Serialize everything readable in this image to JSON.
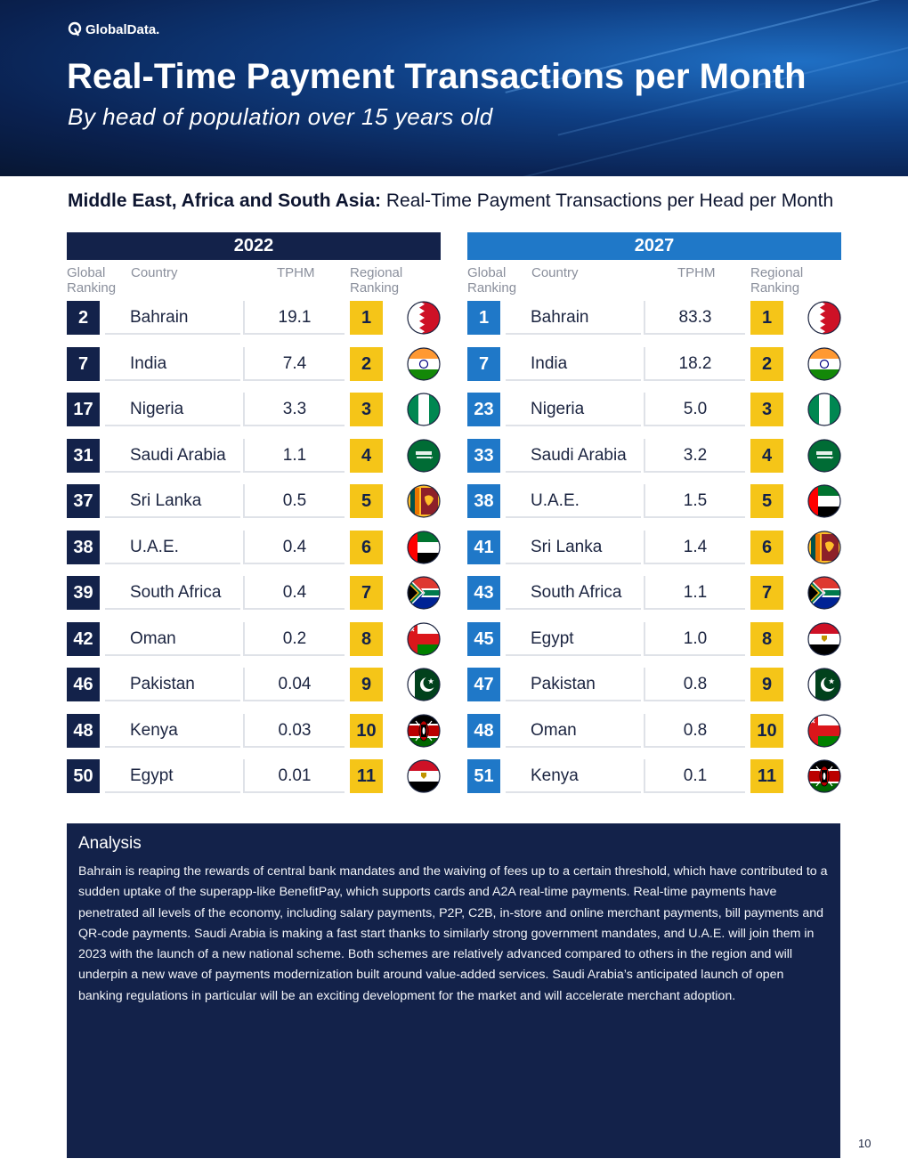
{
  "header": {
    "logo_text": "GlobalData.",
    "title": "Real-Time Payment Transactions per Month",
    "subtitle": "By head of population over 15 years old"
  },
  "section": {
    "title_bold": "Middle East, Africa and South Asia:",
    "title_rest": "Real-Time Payment Transactions per Head per Month"
  },
  "columns": {
    "global": "Global Ranking",
    "country": "Country",
    "tphm": "TPHM",
    "regional": "Regional Ranking"
  },
  "panels": [
    {
      "year": "2022",
      "rows": [
        {
          "global": "2",
          "country": "Bahrain",
          "tphm": "19.1",
          "regional": "1",
          "flag": "bahrain-flag-icon"
        },
        {
          "global": "7",
          "country": "India",
          "tphm": "7.4",
          "regional": "2",
          "flag": "india-flag-icon"
        },
        {
          "global": "17",
          "country": "Nigeria",
          "tphm": "3.3",
          "regional": "3",
          "flag": "nigeria-flag-icon"
        },
        {
          "global": "31",
          "country": "Saudi Arabia",
          "tphm": "1.1",
          "regional": "4",
          "flag": "saudi-arabia-flag-icon"
        },
        {
          "global": "37",
          "country": "Sri Lanka",
          "tphm": "0.5",
          "regional": "5",
          "flag": "sri-lanka-flag-icon"
        },
        {
          "global": "38",
          "country": "U.A.E.",
          "tphm": "0.4",
          "regional": "6",
          "flag": "uae-flag-icon"
        },
        {
          "global": "39",
          "country": "South Africa",
          "tphm": "0.4",
          "regional": "7",
          "flag": "south-africa-flag-icon"
        },
        {
          "global": "42",
          "country": "Oman",
          "tphm": "0.2",
          "regional": "8",
          "flag": "oman-flag-icon"
        },
        {
          "global": "46",
          "country": "Pakistan",
          "tphm": "0.04",
          "regional": "9",
          "flag": "pakistan-flag-icon"
        },
        {
          "global": "48",
          "country": "Kenya",
          "tphm": "0.03",
          "regional": "10",
          "flag": "kenya-flag-icon"
        },
        {
          "global": "50",
          "country": "Egypt",
          "tphm": "0.01",
          "regional": "11",
          "flag": "egypt-flag-icon"
        }
      ]
    },
    {
      "year": "2027",
      "rows": [
        {
          "global": "1",
          "country": "Bahrain",
          "tphm": "83.3",
          "regional": "1",
          "flag": "bahrain-flag-icon"
        },
        {
          "global": "7",
          "country": "India",
          "tphm": "18.2",
          "regional": "2",
          "flag": "india-flag-icon"
        },
        {
          "global": "23",
          "country": "Nigeria",
          "tphm": "5.0",
          "regional": "3",
          "flag": "nigeria-flag-icon"
        },
        {
          "global": "33",
          "country": "Saudi Arabia",
          "tphm": "3.2",
          "regional": "4",
          "flag": "saudi-arabia-flag-icon"
        },
        {
          "global": "38",
          "country": "U.A.E.",
          "tphm": "1.5",
          "regional": "5",
          "flag": "uae-flag-icon"
        },
        {
          "global": "41",
          "country": "Sri Lanka",
          "tphm": "1.4",
          "regional": "6",
          "flag": "sri-lanka-flag-icon"
        },
        {
          "global": "43",
          "country": "South Africa",
          "tphm": "1.1",
          "regional": "7",
          "flag": "south-africa-flag-icon"
        },
        {
          "global": "45",
          "country": "Egypt",
          "tphm": "1.0",
          "regional": "8",
          "flag": "egypt-flag-icon"
        },
        {
          "global": "47",
          "country": "Pakistan",
          "tphm": "0.8",
          "regional": "9",
          "flag": "pakistan-flag-icon"
        },
        {
          "global": "48",
          "country": "Oman",
          "tphm": "0.8",
          "regional": "10",
          "flag": "oman-flag-icon"
        },
        {
          "global": "51",
          "country": "Kenya",
          "tphm": "0.1",
          "regional": "11",
          "flag": "kenya-flag-icon"
        }
      ]
    }
  ],
  "analysis": {
    "heading": "Analysis",
    "body": "Bahrain is reaping the rewards of central bank mandates and the waiving of fees up to a certain threshold, which have contributed to a sudden uptake of the superapp-like BenefitPay, which supports cards and A2A real-time payments. Real-time payments have penetrated all levels of the economy, including salary payments, P2P, C2B, in-store and online merchant payments, bill payments and QR-code payments. Saudi Arabia is making a fast start thanks to similarly strong government mandates, and U.A.E. will join them in 2023 with the launch of a new national scheme. Both schemes are relatively advanced compared to others in the region and will underpin a new wave of payments modernization built around value-added services. Saudi Arabia’s anticipated launch of open banking regulations in particular will be an exciting development for the market and will accelerate merchant adoption."
  },
  "page_number": "10",
  "colors": {
    "navy": "#13224a",
    "blue": "#1f78c8",
    "gold": "#f5c518"
  }
}
